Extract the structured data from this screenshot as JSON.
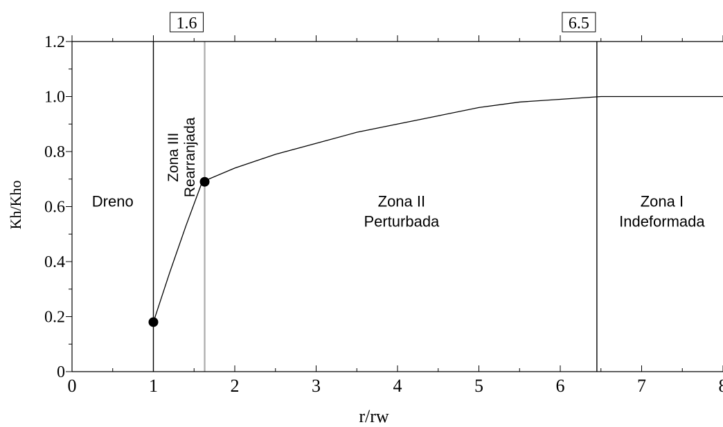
{
  "chart_data": {
    "type": "line",
    "xlabel": "r/rw",
    "ylabel": "Kh/Kho",
    "xlim": [
      0,
      8
    ],
    "ylim": [
      0,
      1.2
    ],
    "x_ticks": [
      "0",
      "1",
      "2",
      "3",
      "4",
      "5",
      "6",
      "7",
      "8"
    ],
    "y_ticks": [
      "0",
      "0.2",
      "0.4",
      "0.6",
      "0.8",
      "1.0",
      "1.2"
    ],
    "grid": false,
    "series": [
      {
        "x": [
          1.0,
          1.2,
          1.4,
          1.6,
          2.0,
          2.5,
          3.0,
          3.5,
          4.0,
          4.5,
          5.0,
          5.5,
          6.0,
          6.5,
          7.0,
          8.0
        ],
        "y": [
          0.18,
          0.36,
          0.53,
          0.69,
          0.74,
          0.79,
          0.83,
          0.87,
          0.9,
          0.93,
          0.96,
          0.98,
          0.99,
          1.0,
          1.0,
          1.0
        ]
      }
    ],
    "markers": [
      {
        "x": 1.0,
        "y": 0.18
      },
      {
        "x": 1.63,
        "y": 0.69
      }
    ],
    "vertical_lines": [
      {
        "x": 1.0,
        "color": "#000000"
      },
      {
        "x": 1.63,
        "color": "#aaaaaa"
      },
      {
        "x": 6.45,
        "color": "#000000"
      }
    ],
    "boxed_labels": [
      {
        "text": "1.6",
        "x": 1.63
      },
      {
        "text": "6.5",
        "x": 6.45
      }
    ],
    "zones": [
      {
        "id": "dreno",
        "lines": [
          "Dreno"
        ],
        "x": 0.5,
        "y": 0.61
      },
      {
        "id": "zona-iii",
        "lines": [
          "Zona III",
          "Rearranjada"
        ],
        "x": 1.3,
        "y": 0.93,
        "rotated": true
      },
      {
        "id": "zona-ii",
        "lines": [
          "Zona II",
          "Perturbada"
        ],
        "x": 4.05,
        "y": 0.61
      },
      {
        "id": "zona-i",
        "lines": [
          "Zona I",
          "Indeformada"
        ],
        "x": 7.25,
        "y": 0.61
      }
    ]
  }
}
